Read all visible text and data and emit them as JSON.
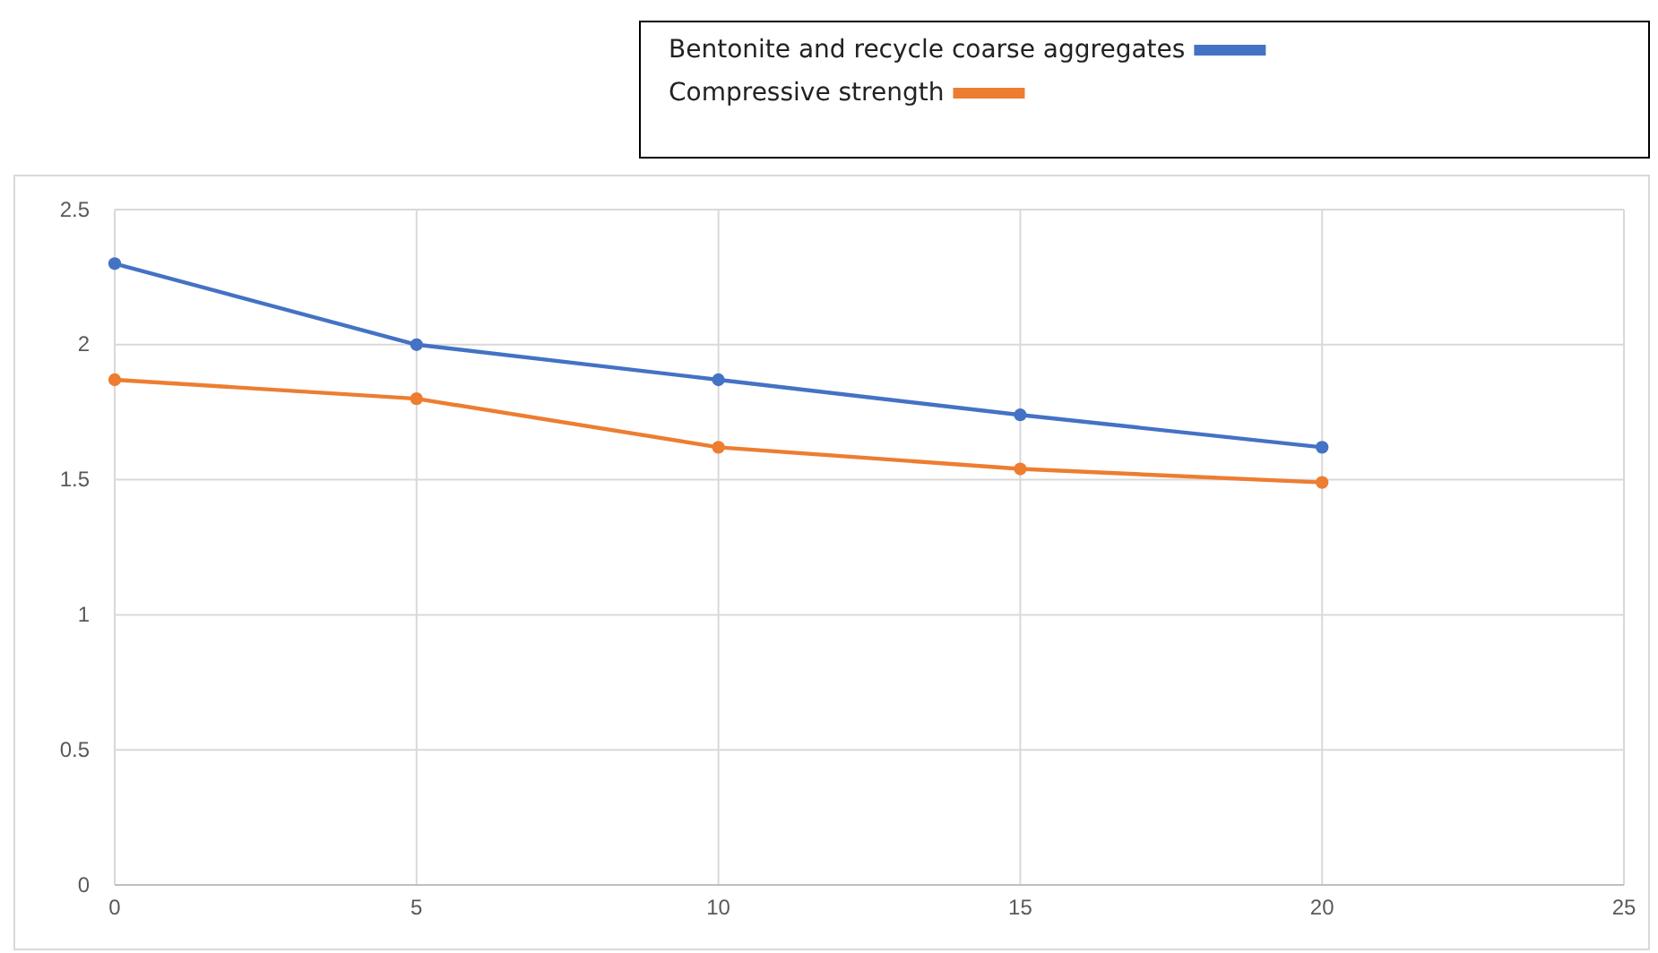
{
  "chart_data": {
    "type": "line",
    "x": [
      0,
      5,
      10,
      15,
      20
    ],
    "series": [
      {
        "name": "Bentonite and recycle coarse aggregates",
        "color": "#4472c4",
        "values": [
          2.3,
          2.0,
          1.87,
          1.74,
          1.62
        ]
      },
      {
        "name": "Compressive strength",
        "color": "#ed7d31",
        "values": [
          1.87,
          1.8,
          1.62,
          1.54,
          1.49
        ]
      }
    ],
    "xlim": [
      0,
      25
    ],
    "xticks": [
      0,
      5,
      10,
      15,
      20,
      25
    ],
    "ylim": [
      0,
      2.5
    ],
    "yticks": [
      0,
      0.5,
      1,
      1.5,
      2,
      2.5
    ],
    "grid": true,
    "legend": "top right",
    "marker": "circle",
    "line_style": "solid"
  }
}
